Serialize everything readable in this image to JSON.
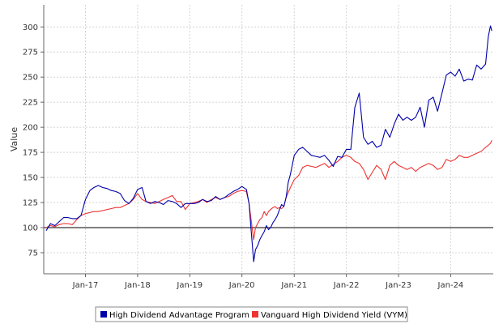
{
  "chart_data": {
    "type": "line",
    "title": "",
    "xlabel": "",
    "ylabel": "Value",
    "x_ticks": [
      "Jan-17",
      "Jan-18",
      "Jan-19",
      "Jan-20",
      "Jan-21",
      "Jan-22",
      "Jan-23",
      "Jan-24"
    ],
    "y_ticks": [
      75,
      100,
      125,
      150,
      175,
      200,
      225,
      250,
      275,
      300
    ],
    "xlim": [
      "2016-03-15",
      "2024-10-25"
    ],
    "ylim": [
      54,
      322
    ],
    "grid": true,
    "reference_line": {
      "y": 100,
      "color": "#000000"
    },
    "legend_position": "bottom",
    "series": [
      {
        "name": "High Dividend Advantage Program",
        "color": "#0000aa",
        "x": [
          "2016-04-01",
          "2016-05-01",
          "2016-06-01",
          "2016-07-01",
          "2016-08-01",
          "2016-09-01",
          "2016-10-01",
          "2016-11-01",
          "2016-12-01",
          "2017-01-01",
          "2017-02-01",
          "2017-03-01",
          "2017-04-01",
          "2017-05-01",
          "2017-06-01",
          "2017-07-01",
          "2017-08-01",
          "2017-09-01",
          "2017-10-01",
          "2017-11-01",
          "2017-12-01",
          "2018-01-01",
          "2018-02-01",
          "2018-03-01",
          "2018-04-01",
          "2018-05-01",
          "2018-06-01",
          "2018-07-01",
          "2018-08-01",
          "2018-09-01",
          "2018-10-01",
          "2018-11-01",
          "2018-12-01",
          "2019-01-01",
          "2019-02-01",
          "2019-03-01",
          "2019-04-01",
          "2019-05-01",
          "2019-06-01",
          "2019-07-01",
          "2019-08-01",
          "2019-09-01",
          "2019-10-01",
          "2019-11-01",
          "2019-12-01",
          "2020-01-01",
          "2020-02-01",
          "2020-02-20",
          "2020-03-05",
          "2020-03-23",
          "2020-04-05",
          "2020-04-20",
          "2020-05-05",
          "2020-05-20",
          "2020-06-05",
          "2020-06-20",
          "2020-07-05",
          "2020-07-20",
          "2020-08-05",
          "2020-08-20",
          "2020-09-05",
          "2020-09-20",
          "2020-10-05",
          "2020-10-20",
          "2020-11-05",
          "2020-11-20",
          "2020-12-05",
          "2021-01-01",
          "2021-02-01",
          "2021-03-01",
          "2021-04-01",
          "2021-05-01",
          "2021-06-01",
          "2021-07-01",
          "2021-08-01",
          "2021-09-01",
          "2021-10-01",
          "2021-11-01",
          "2021-12-01",
          "2022-01-01",
          "2022-02-01",
          "2022-03-01",
          "2022-04-01",
          "2022-05-01",
          "2022-06-01",
          "2022-07-01",
          "2022-08-01",
          "2022-09-01",
          "2022-10-01",
          "2022-11-01",
          "2022-12-01",
          "2023-01-01",
          "2023-02-01",
          "2023-03-01",
          "2023-04-01",
          "2023-05-01",
          "2023-06-01",
          "2023-07-01",
          "2023-08-01",
          "2023-09-01",
          "2023-10-01",
          "2023-11-01",
          "2023-12-01",
          "2024-01-01",
          "2024-02-01",
          "2024-03-01",
          "2024-04-01",
          "2024-05-01",
          "2024-06-01",
          "2024-07-01",
          "2024-08-01",
          "2024-09-01",
          "2024-09-20",
          "2024-10-05",
          "2024-10-15"
        ],
        "y": [
          97,
          104,
          102,
          106,
          110,
          110,
          109,
          109,
          112,
          128,
          137,
          140,
          142,
          140,
          139,
          137,
          136,
          134,
          127,
          124,
          129,
          138,
          140,
          126,
          124,
          126,
          125,
          123,
          127,
          126,
          124,
          120,
          124,
          124,
          124,
          125,
          128,
          126,
          127,
          131,
          128,
          130,
          133,
          136,
          138,
          141,
          138,
          124,
          98,
          66,
          78,
          82,
          88,
          92,
          96,
          102,
          98,
          100,
          105,
          108,
          112,
          118,
          123,
          121,
          130,
          145,
          153,
          172,
          178,
          180,
          176,
          172,
          171,
          170,
          172,
          167,
          161,
          171,
          170,
          178,
          178,
          220,
          234,
          190,
          183,
          186,
          180,
          182,
          198,
          190,
          203,
          213,
          207,
          210,
          207,
          210,
          220,
          200,
          227,
          230,
          216,
          234,
          252,
          255,
          251,
          258,
          246,
          248,
          247,
          262,
          258,
          263,
          290,
          301,
          296
        ]
      },
      {
        "name": "Vanguard High Dividend Yield (VYM)",
        "color": "#ee3333",
        "x": [
          "2016-04-01",
          "2016-05-01",
          "2016-06-01",
          "2016-07-01",
          "2016-08-01",
          "2016-09-01",
          "2016-10-01",
          "2016-11-01",
          "2016-12-01",
          "2017-01-01",
          "2017-02-01",
          "2017-03-01",
          "2017-04-01",
          "2017-05-01",
          "2017-06-01",
          "2017-07-01",
          "2017-08-01",
          "2017-09-01",
          "2017-10-01",
          "2017-11-01",
          "2017-12-01",
          "2018-01-01",
          "2018-02-01",
          "2018-03-01",
          "2018-04-01",
          "2018-05-01",
          "2018-06-01",
          "2018-07-01",
          "2018-08-01",
          "2018-09-01",
          "2018-10-01",
          "2018-11-01",
          "2018-12-01",
          "2019-01-01",
          "2019-02-01",
          "2019-03-01",
          "2019-04-01",
          "2019-05-01",
          "2019-06-01",
          "2019-07-01",
          "2019-08-01",
          "2019-09-01",
          "2019-10-01",
          "2019-11-01",
          "2019-12-01",
          "2020-01-01",
          "2020-02-01",
          "2020-02-20",
          "2020-03-05",
          "2020-03-23",
          "2020-04-05",
          "2020-04-20",
          "2020-05-05",
          "2020-05-20",
          "2020-06-05",
          "2020-06-20",
          "2020-07-05",
          "2020-07-20",
          "2020-08-05",
          "2020-08-20",
          "2020-09-05",
          "2020-09-20",
          "2020-10-05",
          "2020-10-20",
          "2020-11-05",
          "2020-11-20",
          "2020-12-05",
          "2021-01-01",
          "2021-02-01",
          "2021-03-01",
          "2021-04-01",
          "2021-05-01",
          "2021-06-01",
          "2021-07-01",
          "2021-08-01",
          "2021-09-01",
          "2021-10-01",
          "2021-11-01",
          "2021-12-01",
          "2022-01-01",
          "2022-02-01",
          "2022-03-01",
          "2022-04-01",
          "2022-05-01",
          "2022-06-01",
          "2022-07-01",
          "2022-08-01",
          "2022-09-01",
          "2022-10-01",
          "2022-11-01",
          "2022-12-01",
          "2023-01-01",
          "2023-02-01",
          "2023-03-01",
          "2023-04-01",
          "2023-05-01",
          "2023-06-01",
          "2023-07-01",
          "2023-08-01",
          "2023-09-01",
          "2023-10-01",
          "2023-11-01",
          "2023-12-01",
          "2024-01-01",
          "2024-02-01",
          "2024-03-01",
          "2024-04-01",
          "2024-05-01",
          "2024-06-01",
          "2024-07-01",
          "2024-08-01",
          "2024-09-01",
          "2024-09-20",
          "2024-10-05",
          "2024-10-15"
        ],
        "y": [
          100,
          102,
          101,
          103,
          104,
          104,
          103,
          108,
          112,
          114,
          115,
          116,
          116,
          117,
          118,
          119,
          120,
          120,
          122,
          124,
          128,
          134,
          128,
          126,
          125,
          124,
          126,
          128,
          130,
          132,
          126,
          126,
          118,
          124,
          125,
          126,
          128,
          125,
          128,
          130,
          128,
          130,
          131,
          134,
          136,
          137,
          136,
          124,
          108,
          88,
          100,
          104,
          108,
          110,
          116,
          112,
          116,
          118,
          120,
          121,
          119,
          120,
          119,
          121,
          130,
          135,
          140,
          148,
          152,
          160,
          162,
          161,
          160,
          162,
          164,
          160,
          163,
          166,
          170,
          172,
          170,
          166,
          164,
          158,
          148,
          155,
          162,
          158,
          148,
          162,
          166,
          162,
          160,
          158,
          160,
          156,
          160,
          162,
          164,
          162,
          158,
          160,
          168,
          166,
          168,
          172,
          170,
          170,
          172,
          174,
          176,
          180,
          182,
          184,
          187
        ]
      }
    ]
  }
}
